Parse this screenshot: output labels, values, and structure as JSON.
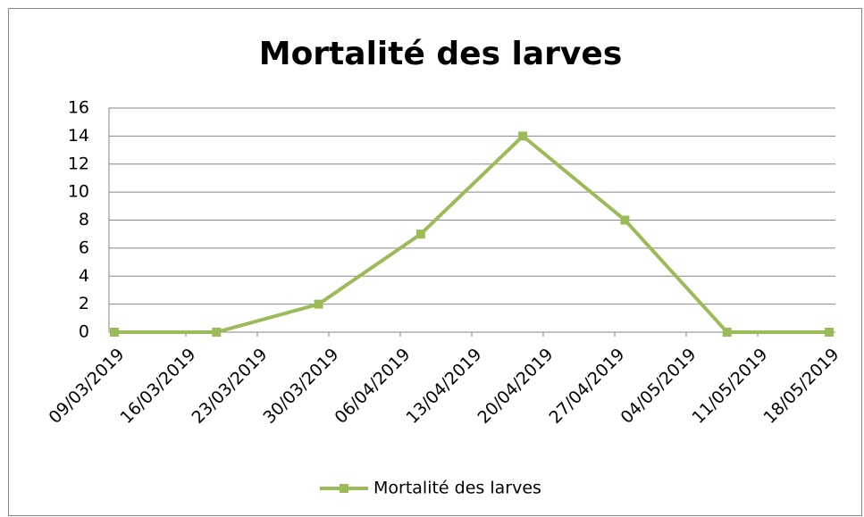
{
  "chart_data": {
    "type": "line",
    "title": "Mortalité des larves",
    "x": [
      "09/03/2019",
      "19/03/2019",
      "29/03/2019",
      "08/04/2019",
      "18/04/2019",
      "28/04/2019",
      "08/05/2019",
      "18/05/2019"
    ],
    "series": [
      {
        "name": "Mortalité des larves",
        "color": "#9bbb59",
        "values": [
          0,
          0,
          2,
          7,
          14,
          8,
          0,
          0
        ]
      }
    ],
    "xlim": [
      "09/03/2019",
      "18/05/2019"
    ],
    "xticks": [
      "09/03/2019",
      "16/03/2019",
      "23/03/2019",
      "30/03/2019",
      "06/04/2019",
      "13/04/2019",
      "20/04/2019",
      "27/04/2019",
      "04/05/2019",
      "11/05/2019",
      "18/05/2019"
    ],
    "ylim": [
      0,
      16
    ],
    "yticks": [
      0,
      2,
      4,
      6,
      8,
      10,
      12,
      14,
      16
    ],
    "grid": true,
    "legend": "bottom"
  }
}
